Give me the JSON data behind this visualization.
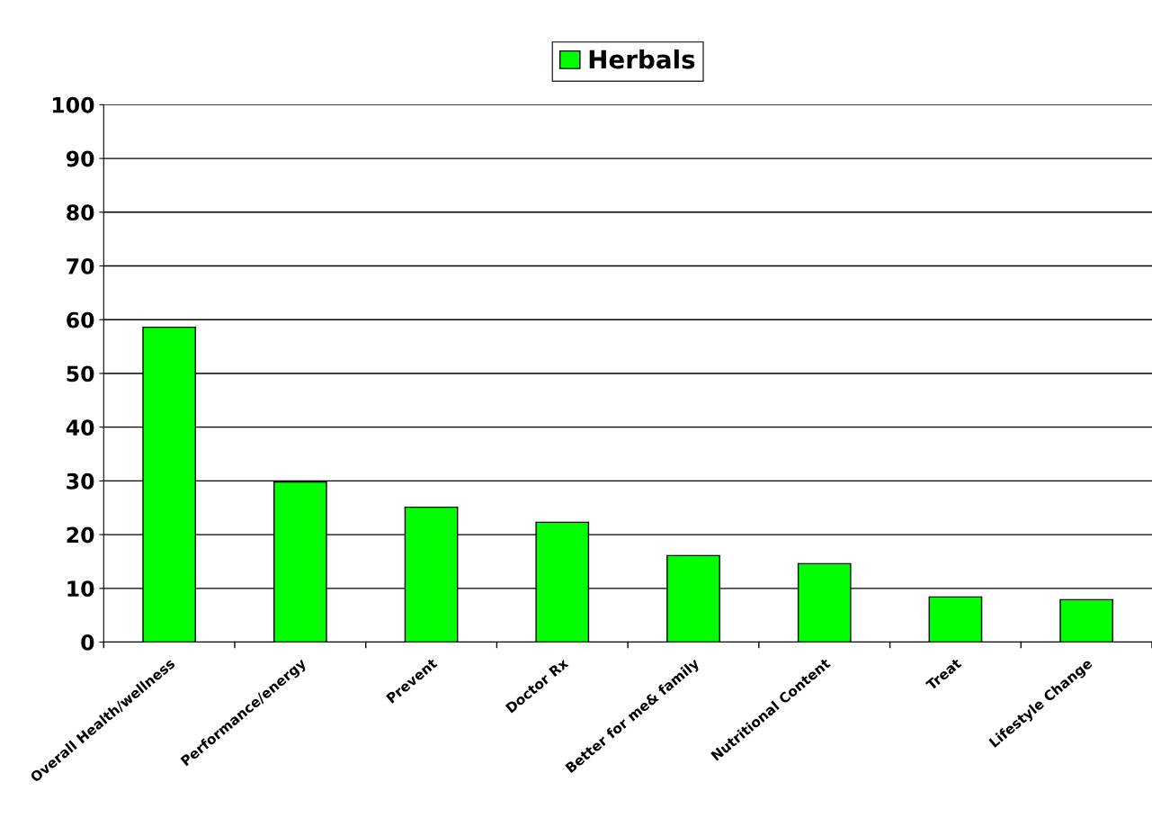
{
  "chart_data": {
    "type": "bar",
    "categories": [
      "Overall Health/wellness",
      "Performance/energy",
      "Prevent",
      "Doctor Rx",
      "Better for me& family",
      "Nutritional Content",
      "Treat",
      "Lifestyle Change"
    ],
    "series": [
      {
        "name": "Herbals",
        "color": "#00ff00",
        "values": [
          58.6,
          29.8,
          25.1,
          22.3,
          16.1,
          14.6,
          8.4,
          7.9
        ]
      }
    ],
    "ylim": [
      0,
      100
    ],
    "yticks": [
      0,
      10,
      20,
      30,
      40,
      50,
      60,
      70,
      80,
      90,
      100
    ],
    "grid": "y",
    "legend": "top"
  }
}
